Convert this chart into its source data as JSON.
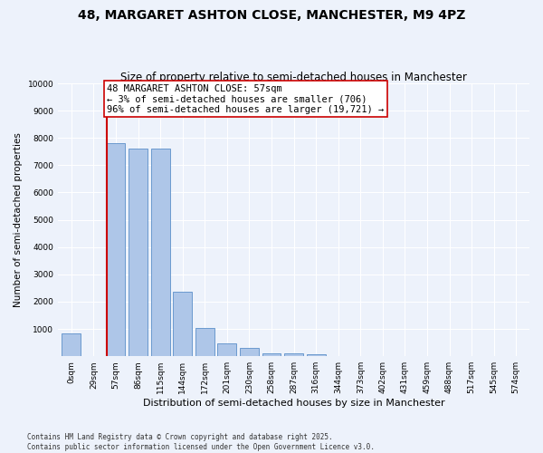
{
  "title": "48, MARGARET ASHTON CLOSE, MANCHESTER, M9 4PZ",
  "subtitle": "Size of property relative to semi-detached houses in Manchester",
  "xlabel": "Distribution of semi-detached houses by size in Manchester",
  "ylabel": "Number of semi-detached properties",
  "categories": [
    "0sqm",
    "29sqm",
    "57sqm",
    "86sqm",
    "115sqm",
    "144sqm",
    "172sqm",
    "201sqm",
    "230sqm",
    "258sqm",
    "287sqm",
    "316sqm",
    "344sqm",
    "373sqm",
    "402sqm",
    "431sqm",
    "459sqm",
    "488sqm",
    "517sqm",
    "545sqm",
    "574sqm"
  ],
  "values": [
    850,
    0,
    7800,
    7600,
    7600,
    2350,
    1020,
    470,
    310,
    120,
    110,
    80,
    0,
    0,
    0,
    0,
    0,
    0,
    0,
    0,
    0
  ],
  "bar_color": "#aec6e8",
  "bar_edge_color": "#5b8fc9",
  "highlight_index": 2,
  "highlight_line_color": "#cc0000",
  "annotation_text": "48 MARGARET ASHTON CLOSE: 57sqm\n← 3% of semi-detached houses are smaller (706)\n96% of semi-detached houses are larger (19,721) →",
  "annotation_box_color": "#ffffff",
  "annotation_border_color": "#cc0000",
  "ylim": [
    0,
    10000
  ],
  "yticks": [
    0,
    1000,
    2000,
    3000,
    4000,
    5000,
    6000,
    7000,
    8000,
    9000,
    10000
  ],
  "background_color": "#edf2fb",
  "grid_color": "#ffffff",
  "footer": "Contains HM Land Registry data © Crown copyright and database right 2025.\nContains public sector information licensed under the Open Government Licence v3.0.",
  "title_fontsize": 10,
  "subtitle_fontsize": 8.5,
  "xlabel_fontsize": 8,
  "ylabel_fontsize": 7.5,
  "tick_fontsize": 6.5,
  "annotation_fontsize": 7.5,
  "footer_fontsize": 5.5
}
